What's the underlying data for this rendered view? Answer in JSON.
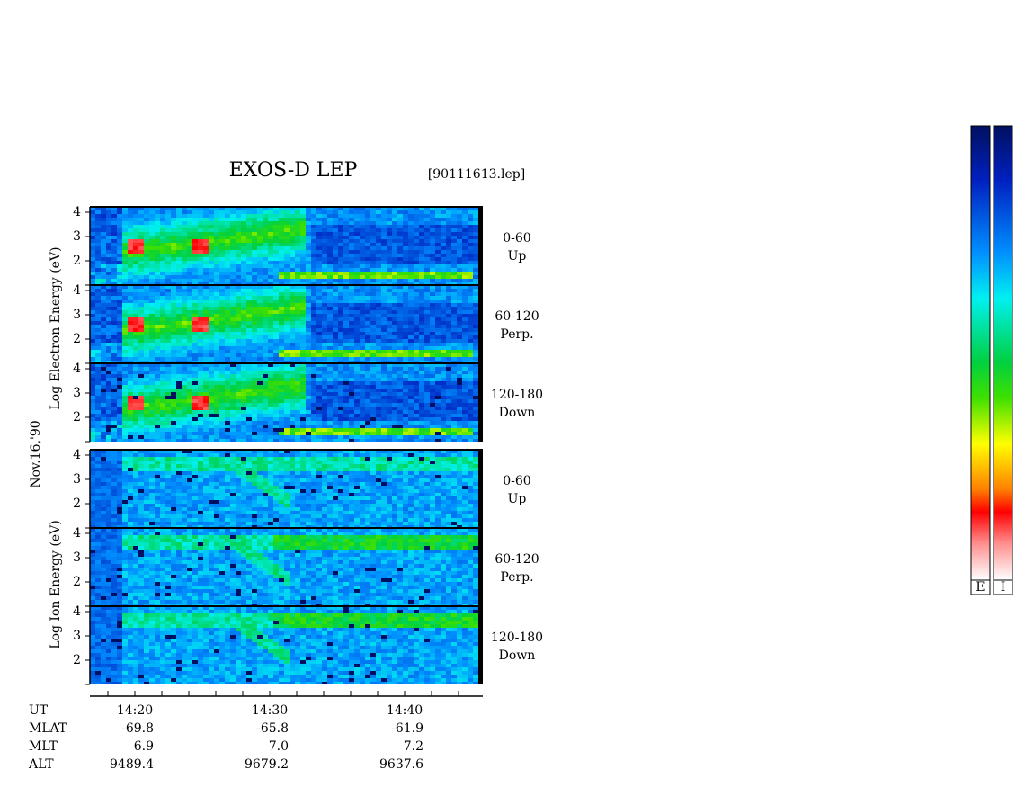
{
  "title": "EXOS-D LEP",
  "file": "[90111613.lep]",
  "date": "Nov.16,'90",
  "ylabels": [
    "Log Electron Energy (eV)",
    "Log Ion Energy (eV)"
  ],
  "panels": [
    {
      "pitch": "0-60",
      "direction": "Up",
      "yticks": [
        "2",
        "3",
        "4"
      ]
    },
    {
      "pitch": "60-120",
      "direction": "Perp.",
      "yticks": [
        "2",
        "3",
        "4"
      ]
    },
    {
      "pitch": "120-180",
      "direction": "Down",
      "yticks": [
        "2",
        "3",
        "4"
      ]
    },
    {
      "pitch": "0-60",
      "direction": "Up",
      "yticks": [
        "2",
        "3",
        "4"
      ]
    },
    {
      "pitch": "60-120",
      "direction": "Perp.",
      "yticks": [
        "2",
        "3",
        "4"
      ]
    },
    {
      "pitch": "120-180",
      "direction": "Down",
      "yticks": [
        "2",
        "3",
        "4"
      ]
    }
  ],
  "time_ticks": [
    "14:20",
    "14:30",
    "14:40"
  ],
  "ephemeris": [
    {
      "label": "UT"
    },
    {
      "label": "MLAT",
      "values": [
        "-69.8",
        "-65.8",
        "-61.9"
      ]
    },
    {
      "label": "MLT",
      "values": [
        "6.9",
        "7.0",
        "7.2"
      ]
    },
    {
      "label": "ALT",
      "values": [
        "9489.4",
        "9679.2",
        "9637.6"
      ]
    }
  ],
  "colorbars": [
    "E",
    "I"
  ]
}
